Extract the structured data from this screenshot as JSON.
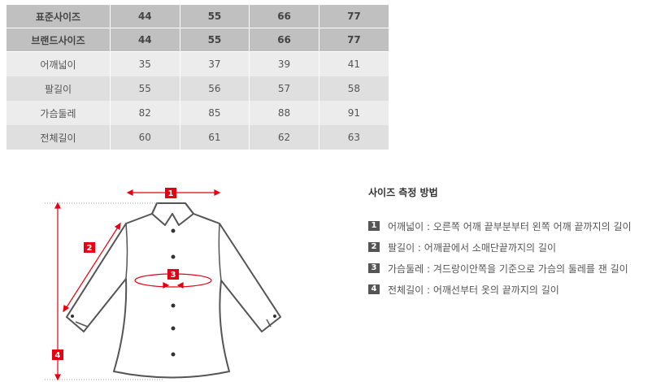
{
  "table": {
    "headers": [
      [
        "표준사이즈",
        "44",
        "55",
        "66",
        "77"
      ],
      [
        "브랜드사이즈",
        "44",
        "55",
        "66",
        "77"
      ]
    ],
    "rows": [
      [
        "어깨넓이",
        "35",
        "37",
        "39",
        "41"
      ],
      [
        "팔길이",
        "55",
        "56",
        "57",
        "58"
      ],
      [
        "가슴둘레",
        "82",
        "85",
        "88",
        "91"
      ],
      [
        "전체길이",
        "60",
        "61",
        "62",
        "63"
      ]
    ]
  },
  "diagram": {
    "markers": [
      "1",
      "2",
      "3",
      "4"
    ],
    "accent": "#e60012"
  },
  "guide": {
    "title": "사이즈 측정 방법",
    "items": [
      {
        "num": "1",
        "text": "어깨넓이 : 오른쪽 어깨 끝부분부터 왼쪽 어깨 끝까지의 길이"
      },
      {
        "num": "2",
        "text": "팔길이 : 어깨끝에서 소매단끝까지의 길이"
      },
      {
        "num": "3",
        "text": "가슴둘레 : 겨드랑이안쪽을 기준으로 가슴의 둘레를 잰 길이"
      },
      {
        "num": "4",
        "text": "전체길이 : 어깨선부터 옷의 끝까지의 길이"
      }
    ]
  }
}
